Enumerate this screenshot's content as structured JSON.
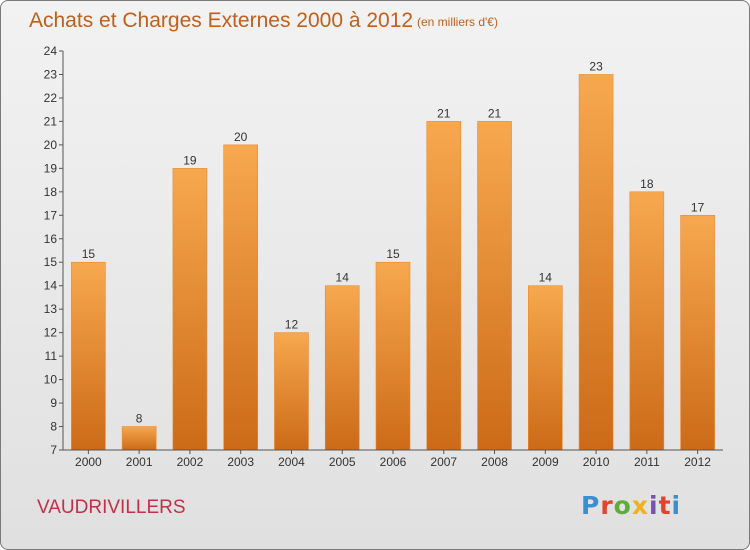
{
  "header": {
    "title": "Achats et Charges Externes 2000 à 2012",
    "unit": "(en milliers d'€)"
  },
  "footer": {
    "commune": "VAUDRIVILLERS",
    "logo_text": "Proxiti",
    "logo_colors": [
      "#3a8fd0",
      "#e0452b",
      "#5cae38",
      "#f0b020",
      "#7a4fb0",
      "#e0452b",
      "#3a8fd0"
    ]
  },
  "colors": {
    "bar_top": "#f7a84f",
    "bar_bottom": "#cc6a18",
    "text": "#c0601a",
    "axis": "#555555"
  },
  "chart_data": {
    "type": "bar",
    "categories": [
      "2000",
      "2001",
      "2002",
      "2003",
      "2004",
      "2005",
      "2006",
      "2007",
      "2008",
      "2009",
      "2010",
      "2011",
      "2012"
    ],
    "values": [
      15,
      8,
      19,
      20,
      12,
      14,
      15,
      21,
      21,
      14,
      23,
      18,
      17
    ],
    "title": "Achats et Charges Externes 2000 à 2012",
    "ylim": [
      7,
      24
    ],
    "yticks": [
      7,
      8,
      9,
      10,
      11,
      12,
      13,
      14,
      15,
      16,
      17,
      18,
      19,
      20,
      21,
      22,
      23,
      24
    ],
    "grid": false,
    "data_labels": true
  }
}
